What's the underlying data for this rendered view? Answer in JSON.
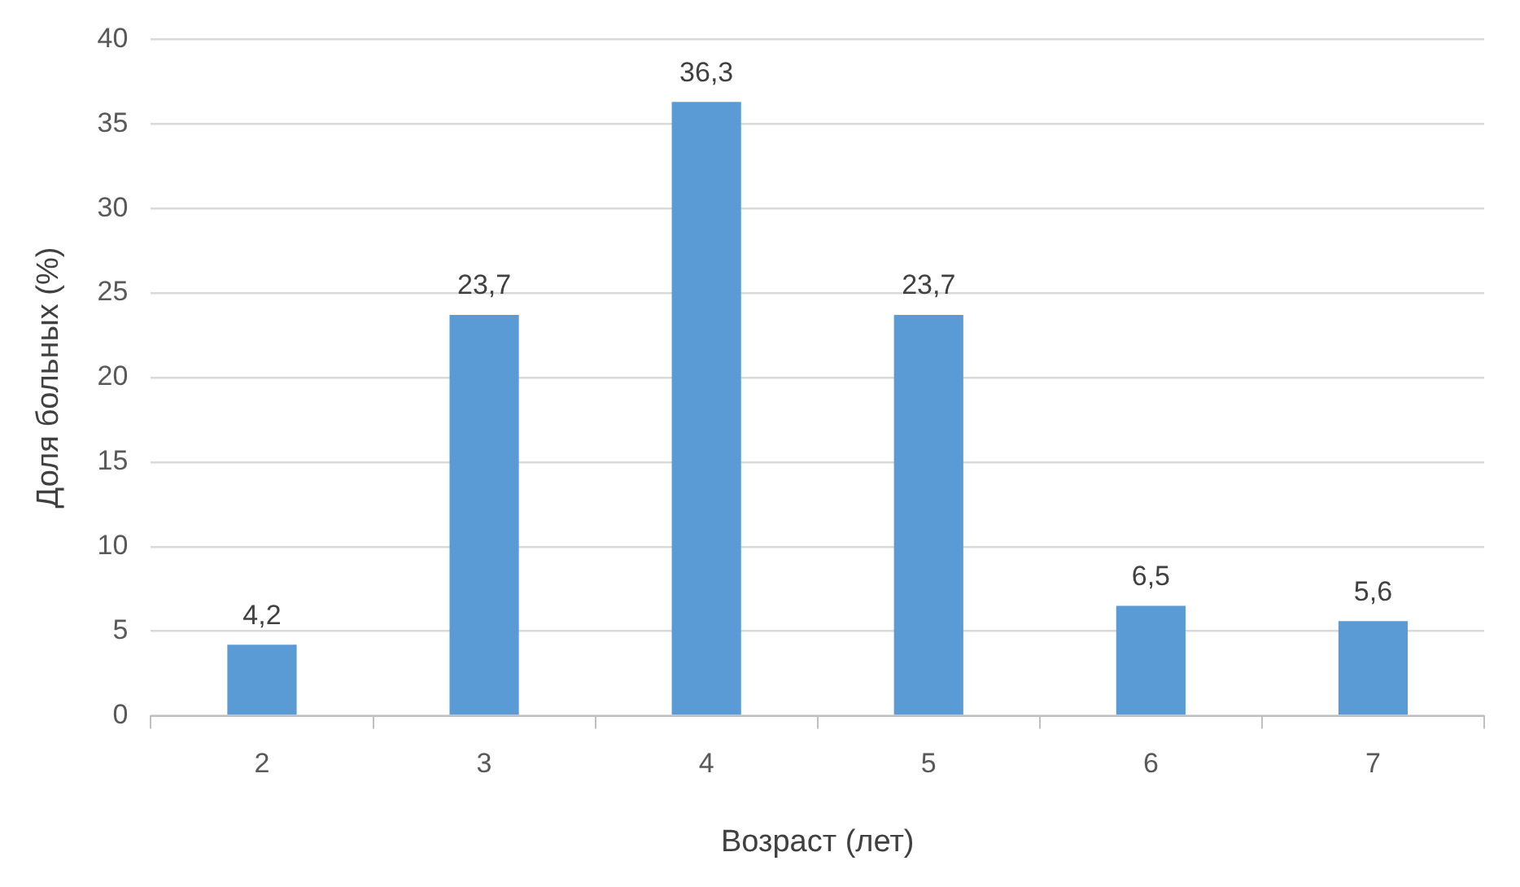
{
  "chart_data": {
    "type": "bar",
    "xlabel": "Возраст (лет)",
    "ylabel": "Доля больных (%)",
    "categories": [
      "2",
      "3",
      "4",
      "5",
      "6",
      "7"
    ],
    "values": [
      4.2,
      23.7,
      36.3,
      23.7,
      6.5,
      5.6
    ],
    "value_labels": [
      "4,2",
      "23,7",
      "36,3",
      "23,7",
      "6,5",
      "5,6"
    ],
    "color": "#5b9bd5",
    "ylim": [
      0,
      40
    ],
    "yticks": [
      0,
      5,
      10,
      15,
      20,
      25,
      30,
      35,
      40
    ],
    "grid": "y",
    "legend": false
  }
}
